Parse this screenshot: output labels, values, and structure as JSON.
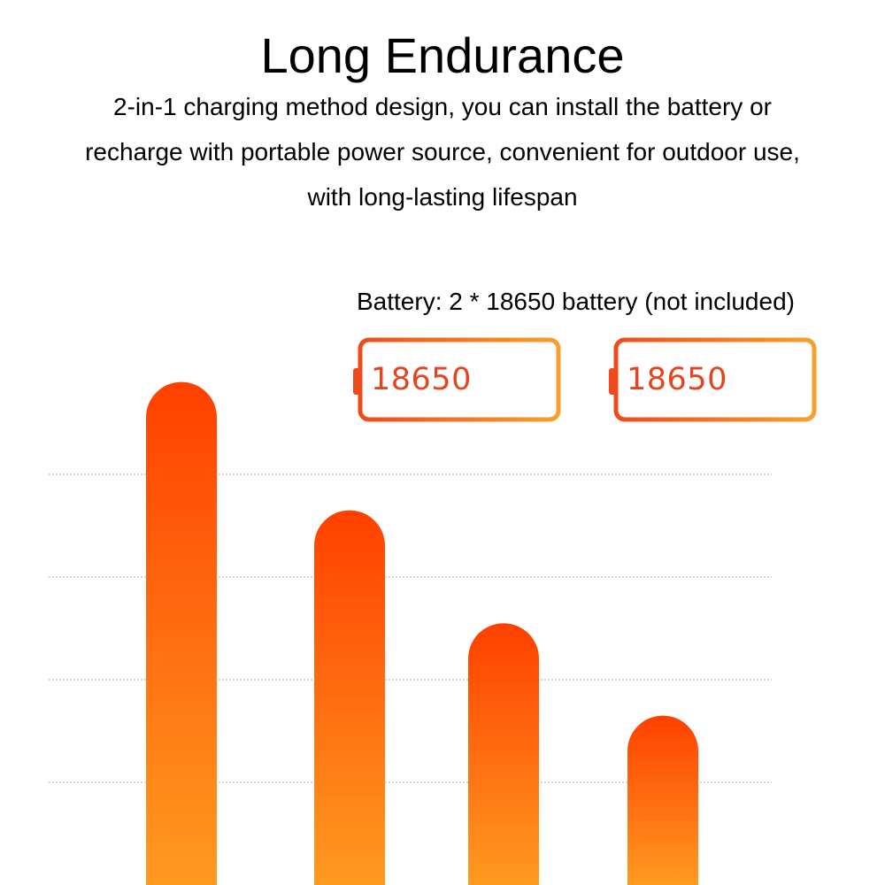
{
  "title": "Long Endurance",
  "description_lines": [
    "2-in-1 charging method design, you can install the battery or",
    "recharge with portable power source, convenient for outdoor use,",
    "with long-lasting lifespan"
  ],
  "battery_note": "Battery: 2 * 18650 battery (not included)",
  "batteries": [
    {
      "label": "18650"
    },
    {
      "label": "18650"
    }
  ],
  "colors": {
    "bar_top": "#ff4000",
    "bar_bottom": "#ff9a20",
    "battery_outline_left": "#ef4a1c",
    "battery_outline_right": "#f6a12b",
    "battery_text": "#e8431f",
    "gridline": "#c8c8c8"
  },
  "chart_data": {
    "type": "bar",
    "categories": [
      "",
      "",
      "",
      ""
    ],
    "values": [
      4.9,
      3.65,
      2.55,
      1.65
    ],
    "ylim": [
      0,
      5.0
    ],
    "grid": true,
    "gridlines_at": [
      1,
      2,
      3,
      4
    ]
  }
}
